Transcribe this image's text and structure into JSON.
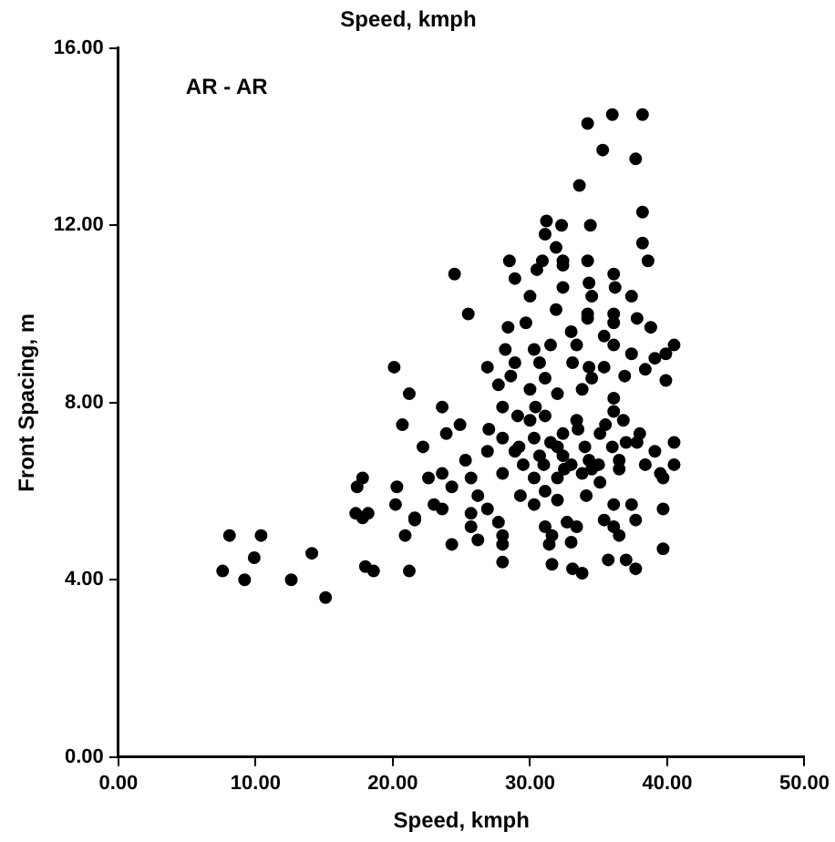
{
  "chart_data": {
    "type": "scatter",
    "title": "Speed, kmph",
    "xlabel": "Speed, kmph",
    "ylabel": "Front Spacing, m",
    "annotations": [
      "AR - AR"
    ],
    "xlim": [
      0,
      50
    ],
    "ylim": [
      0,
      16
    ],
    "xticks": [
      {
        "value": 0,
        "label": "0.00"
      },
      {
        "value": 10,
        "label": "10.00"
      },
      {
        "value": 20,
        "label": "20.00"
      },
      {
        "value": 30,
        "label": "30.00"
      },
      {
        "value": 40,
        "label": "40.00"
      },
      {
        "value": 50,
        "label": "50.00"
      }
    ],
    "yticks": [
      {
        "value": 0,
        "label": "0.00"
      },
      {
        "value": 4,
        "label": "4.00"
      },
      {
        "value": 8,
        "label": "8.00"
      },
      {
        "value": 12,
        "label": "12.00"
      },
      {
        "value": 16,
        "label": "16.00"
      }
    ],
    "marker": "circle",
    "grid": false,
    "legend": false,
    "series": [
      {
        "color": "#000000",
        "x": [
          7.6,
          8.1,
          9.2,
          9.9,
          10.4,
          12.6,
          14.1,
          15.1,
          17.3,
          17.8,
          18.2,
          18.0,
          18.6,
          20.2,
          20.9,
          21.6,
          21.2,
          31.2,
          32.3,
          34.4,
          31.1,
          33.6,
          34.2,
          36.0,
          38.2,
          35.3,
          37.7,
          38.2,
          38.2,
          24.5,
          25.5,
          20.1,
          21.2,
          38.6,
          31.9,
          28.5,
          28.9,
          30.5,
          30.9,
          32.4,
          32.4,
          34.2,
          36.1,
          34.3,
          32.4,
          30.0,
          34.5,
          36.2,
          37.4,
          31.9,
          34.2,
          34.2,
          36.1,
          36.1,
          37.8,
          38.8,
          28.4,
          29.7,
          33.0,
          35.4,
          28.2,
          30.3,
          31.5,
          33.4,
          36.1,
          37.4,
          39.1,
          39.9,
          40.5,
          26.9,
          28.9,
          30.7,
          33.1,
          34.3,
          35.4,
          38.4,
          28.6,
          31.1,
          34.5,
          36.9,
          39.9,
          27.7,
          30.0,
          32.0,
          33.8,
          36.1,
          23.6,
          28.0,
          30.4,
          36.1,
          20.7,
          24.9,
          23.9,
          27.0,
          29.1,
          31.1,
          33.4,
          36.8,
          22.2,
          28.0,
          30.3,
          32.4,
          35.1,
          37.8,
          40.5,
          39.1,
          40.5,
          25.3,
          26.9,
          28.9,
          30.7,
          32.4,
          34.3,
          36.5,
          38.4,
          17.8,
          22.6,
          23.6,
          25.7,
          28.0,
          30.3,
          32.0,
          33.8,
          35.1,
          39.7,
          39.5,
          17.4,
          20.3,
          24.3,
          26.2,
          29.3,
          31.1,
          34.1,
          23.0,
          25.7,
          26.9,
          30.3,
          32.0,
          36.1,
          37.4,
          39.7,
          23.6,
          21.6,
          25.7,
          27.7,
          31.1,
          32.7,
          35.4,
          36.1,
          37.7,
          26.2,
          28.0,
          31.6,
          33.4,
          36.5,
          24.3,
          28.0,
          31.4,
          33.0,
          39.7,
          35.7,
          28.0,
          31.6,
          33.1,
          33.8,
          37.0,
          37.7,
          31.0,
          32.0,
          33.0,
          34.0,
          35.0,
          36.0,
          33.5,
          30.0,
          35.5,
          32.5,
          34.5,
          36.5,
          37.0,
          38.0,
          31.5,
          29.5,
          29.2
        ],
        "values": [
          4.2,
          5.0,
          4.0,
          4.5,
          5.0,
          4.0,
          4.6,
          3.6,
          5.5,
          5.4,
          5.5,
          4.3,
          4.2,
          5.7,
          5.0,
          5.4,
          4.2,
          12.1,
          12.0,
          12.0,
          11.8,
          12.9,
          14.3,
          14.5,
          14.5,
          13.7,
          13.5,
          12.3,
          11.6,
          10.9,
          10.0,
          8.8,
          8.2,
          11.2,
          11.5,
          11.2,
          10.8,
          11.0,
          11.2,
          11.2,
          11.1,
          11.2,
          10.9,
          10.7,
          10.6,
          10.4,
          10.4,
          10.6,
          10.4,
          10.1,
          10.0,
          9.9,
          10.0,
          9.8,
          9.9,
          9.7,
          9.7,
          9.8,
          9.6,
          9.5,
          9.2,
          9.2,
          9.3,
          9.3,
          9.3,
          9.1,
          9.0,
          9.1,
          9.3,
          8.8,
          8.9,
          8.9,
          8.9,
          8.8,
          8.8,
          8.75,
          8.6,
          8.55,
          8.55,
          8.6,
          8.5,
          8.4,
          8.3,
          8.2,
          8.3,
          8.1,
          7.9,
          7.9,
          7.9,
          7.8,
          7.5,
          7.5,
          7.3,
          7.4,
          7.7,
          7.7,
          7.6,
          7.6,
          7.0,
          7.2,
          7.2,
          7.3,
          7.3,
          7.1,
          7.1,
          6.9,
          6.6,
          6.7,
          6.9,
          6.9,
          6.8,
          6.8,
          6.7,
          6.7,
          6.6,
          6.3,
          6.3,
          6.4,
          6.3,
          6.4,
          6.3,
          6.3,
          6.4,
          6.2,
          6.3,
          6.4,
          6.1,
          6.1,
          6.1,
          5.9,
          5.9,
          6.0,
          5.9,
          5.7,
          5.5,
          5.6,
          5.7,
          5.8,
          5.7,
          5.7,
          5.6,
          5.6,
          5.35,
          5.2,
          5.3,
          5.2,
          5.3,
          5.35,
          5.2,
          5.35,
          4.9,
          5.0,
          5.0,
          5.2,
          5.0,
          4.8,
          4.8,
          4.8,
          4.85,
          4.7,
          4.45,
          4.4,
          4.35,
          4.25,
          4.15,
          4.45,
          4.25,
          6.6,
          7.0,
          6.6,
          7.0,
          6.6,
          7.0,
          7.4,
          7.6,
          7.5,
          6.5,
          6.5,
          6.5,
          7.1,
          7.3,
          7.1,
          6.6,
          7.0
        ]
      }
    ]
  }
}
